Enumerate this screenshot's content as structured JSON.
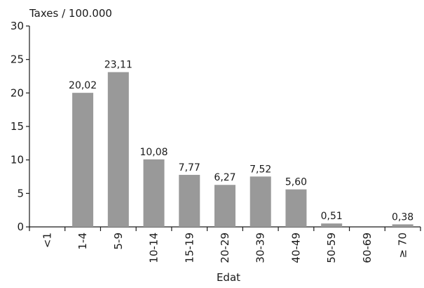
{
  "chart_data": {
    "type": "bar",
    "ylabel": "Taxes / 100.000",
    "xlabel": "Edat",
    "categories": [
      "<1",
      "1-4",
      "5-9",
      "10-14",
      "15-19",
      "20-29",
      "30-39",
      "40-49",
      "50-59",
      "60-69",
      "≥ 70"
    ],
    "values": [
      0,
      20.02,
      23.11,
      10.08,
      7.77,
      6.27,
      7.52,
      5.6,
      0.51,
      0,
      0.38
    ],
    "value_labels": [
      "",
      "20,02",
      "23,11",
      "10,08",
      "7,77",
      "6,27",
      "7,52",
      "5,60",
      "0,51",
      "",
      "0,38"
    ],
    "ylim": [
      0,
      30
    ],
    "yticks": [
      0,
      5,
      10,
      15,
      20,
      25,
      30
    ],
    "grid": false,
    "bar_color": "#999999"
  }
}
